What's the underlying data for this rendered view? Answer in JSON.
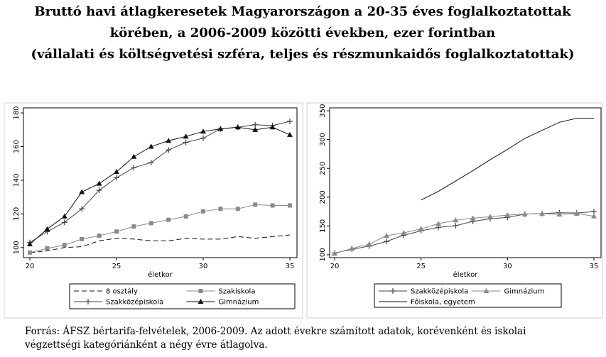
{
  "title": [
    "Bruttó havi átlagkeresetek Magyarországon a 20-35 éves foglalkoztatottak",
    "körében, a 2006-2009 közötti években, ezer forintban",
    "(vállalati és költségvetési szféra, teljes és részmunkaidős foglalkoztatottak)"
  ],
  "chart_data": [
    {
      "type": "line",
      "xlabel": "életkor",
      "x": [
        20,
        21,
        22,
        23,
        24,
        25,
        26,
        27,
        28,
        29,
        30,
        31,
        32,
        33,
        34,
        35
      ],
      "xlim": [
        20,
        35
      ],
      "xticks": [
        20,
        25,
        30,
        35
      ],
      "ylim": [
        94,
        183
      ],
      "yticks": [
        100,
        120,
        140,
        160,
        180
      ],
      "series": [
        {
          "name": "8 osztály",
          "color": "#111111",
          "dash": true,
          "marker": null,
          "values": [
            97,
            98,
            100,
            100.5,
            104,
            105.5,
            105,
            104,
            104,
            105.5,
            105,
            105,
            106.5,
            105.5,
            106.5,
            107.5
          ]
        },
        {
          "name": "Szakiskola",
          "color": "#8a8a8a",
          "dash": false,
          "marker": "square",
          "values": [
            97,
            99.5,
            101.5,
            105,
            107,
            109.5,
            112.5,
            114.5,
            116.5,
            118.5,
            121.5,
            123,
            123,
            125.5,
            125,
            125
          ]
        },
        {
          "name": "Szakközépiskola",
          "color": "#444444",
          "dash": false,
          "marker": "plus",
          "values": [
            103,
            109.5,
            115,
            123,
            134,
            141.5,
            147.5,
            150.5,
            158,
            162.5,
            165,
            170.5,
            171.5,
            173,
            172.5,
            175
          ]
        },
        {
          "name": "Gimnázium",
          "color": "#111111",
          "dash": false,
          "marker": "triangle",
          "values": [
            102,
            111,
            118.5,
            133,
            138,
            145,
            154,
            160,
            163.5,
            166,
            169,
            170.5,
            171.5,
            170,
            171.5,
            167
          ]
        }
      ]
    },
    {
      "type": "line",
      "xlabel": "életkor",
      "x": [
        20,
        21,
        22,
        23,
        24,
        25,
        26,
        27,
        28,
        29,
        30,
        31,
        32,
        33,
        34,
        35
      ],
      "xlim": [
        20,
        35
      ],
      "xticks": [
        20,
        25,
        30,
        35
      ],
      "ylim": [
        95,
        355
      ],
      "yticks": [
        100,
        150,
        200,
        250,
        300,
        350
      ],
      "series": [
        {
          "name": "Szakközépiskola",
          "color": "#444444",
          "dash": false,
          "marker": "plus",
          "values": [
            103,
            109.5,
            115,
            123,
            134,
            141.5,
            147.5,
            150.5,
            158,
            162.5,
            165,
            170.5,
            171.5,
            173,
            172.5,
            175
          ]
        },
        {
          "name": "Gimnázium",
          "color": "#8a8a8a",
          "dash": false,
          "marker": "triangle",
          "values": [
            102,
            111,
            118.5,
            133,
            138,
            145,
            154,
            160,
            163.5,
            166,
            169,
            170.5,
            171.5,
            170,
            171.5,
            167
          ]
        },
        {
          "name": "Főiskola, egyetem",
          "color": "#111111",
          "dash": false,
          "marker": null,
          "values": [
            null,
            null,
            null,
            null,
            null,
            195,
            210,
            228,
            246,
            265,
            283,
            302,
            316,
            330,
            337,
            337
          ]
        }
      ]
    }
  ],
  "source": [
    "Forrás: ÁFSZ bértarifa-felvételek, 2006-2009. Az adott évekre számított adatok, korévenként és iskolai",
    "végzettségi kategóriánként a négy évre átlagolva."
  ]
}
